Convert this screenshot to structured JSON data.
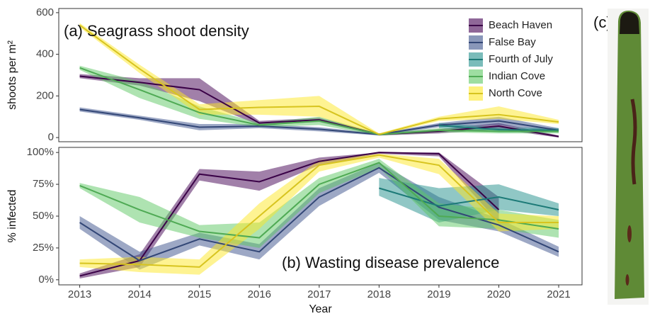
{
  "chart_data": [
    {
      "type": "line",
      "title": "(a) Seagrass shoot density",
      "ylabel": "shoots per m²",
      "x": [
        2013,
        2014,
        2015,
        2016,
        2017,
        2018,
        2019,
        2020,
        2021
      ],
      "xlim": [
        2012.65,
        2021.39
      ],
      "ylim": [
        -20,
        620
      ],
      "yticks": [
        0,
        200,
        400,
        600
      ],
      "legend": "top-right",
      "series": [
        {
          "name": "Beach Haven",
          "color": "#440154",
          "values": [
            295,
            265,
            230,
            70,
            85,
            15,
            30,
            55,
            5
          ],
          "lower": [
            285,
            250,
            175,
            60,
            75,
            10,
            20,
            40,
            0
          ],
          "upper": [
            305,
            285,
            285,
            80,
            95,
            20,
            40,
            70,
            10
          ]
        },
        {
          "name": "False Bay",
          "color": "#3b528b",
          "values": [
            135,
            95,
            50,
            55,
            40,
            15,
            60,
            80,
            35
          ],
          "lower": [
            125,
            85,
            35,
            45,
            30,
            10,
            50,
            60,
            25
          ],
          "upper": [
            145,
            105,
            65,
            65,
            50,
            20,
            70,
            100,
            45
          ]
        },
        {
          "name": "Fourth of July",
          "color": "#21908c",
          "values": [
            null,
            null,
            null,
            null,
            null,
            null,
            58,
            38,
            35
          ],
          "lower": [
            null,
            null,
            null,
            null,
            null,
            null,
            45,
            25,
            25
          ],
          "upper": [
            null,
            null,
            null,
            null,
            null,
            null,
            70,
            50,
            45
          ]
        },
        {
          "name": "Indian Cove",
          "color": "#5dc863",
          "values": [
            335,
            230,
            120,
            60,
            80,
            15,
            35,
            30,
            30
          ],
          "lower": [
            325,
            190,
            90,
            50,
            60,
            10,
            25,
            20,
            20
          ],
          "upper": [
            345,
            270,
            150,
            70,
            100,
            20,
            45,
            40,
            40
          ]
        },
        {
          "name": "North Cove",
          "color": "#fde725",
          "values": [
            540,
            330,
            135,
            145,
            150,
            15,
            90,
            110,
            75
          ],
          "lower": [
            530,
            310,
            110,
            110,
            100,
            10,
            80,
            90,
            65
          ],
          "upper": [
            550,
            350,
            160,
            180,
            200,
            20,
            100,
            150,
            85
          ]
        }
      ]
    },
    {
      "type": "line",
      "title": "(b) Wasting disease prevalence",
      "ylabel": "% infected",
      "xlabel": "Year",
      "x": [
        2013,
        2014,
        2015,
        2016,
        2017,
        2018,
        2019,
        2020,
        2021
      ],
      "xlim": [
        2012.65,
        2021.39
      ],
      "xticks": [
        2013,
        2014,
        2015,
        2016,
        2017,
        2018,
        2019,
        2020,
        2021
      ],
      "ylim": [
        -4,
        104
      ],
      "yticks": [
        {
          "value": 0,
          "label": "0%"
        },
        {
          "value": 25,
          "label": "25%"
        },
        {
          "value": 50,
          "label": "50%"
        },
        {
          "value": 75,
          "label": "75%"
        },
        {
          "value": 100,
          "label": "100%"
        }
      ],
      "series": [
        {
          "color": "#440154",
          "values": [
            3,
            15,
            83,
            77,
            93,
            100,
            99,
            55,
            null
          ],
          "lower": [
            1,
            10,
            78,
            70,
            90,
            99,
            97,
            45,
            null
          ],
          "upper": [
            5,
            20,
            87,
            85,
            96,
            100,
            100,
            65,
            null
          ]
        },
        {
          "color": "#3b528b",
          "values": [
            45,
            15,
            32,
            22,
            65,
            88,
            57,
            43,
            22
          ],
          "lower": [
            40,
            8,
            27,
            16,
            58,
            84,
            47,
            38,
            18
          ],
          "upper": [
            50,
            22,
            37,
            28,
            72,
            92,
            65,
            48,
            26
          ]
        },
        {
          "color": "#21908c",
          "values": [
            null,
            null,
            null,
            null,
            null,
            72,
            58,
            65,
            55
          ],
          "lower": [
            null,
            null,
            null,
            null,
            null,
            66,
            45,
            55,
            50
          ],
          "upper": [
            null,
            null,
            null,
            null,
            null,
            80,
            72,
            75,
            60
          ]
        },
        {
          "color": "#5dc863",
          "values": [
            74,
            55,
            38,
            33,
            75,
            92,
            50,
            47,
            40
          ],
          "lower": [
            72,
            45,
            33,
            25,
            68,
            88,
            42,
            40,
            33
          ],
          "upper": [
            76,
            65,
            43,
            45,
            80,
            95,
            60,
            55,
            47
          ]
        },
        {
          "color": "#fde725",
          "values": [
            13,
            12,
            10,
            50,
            90,
            98,
            90,
            45,
            45
          ],
          "lower": [
            10,
            6,
            4,
            40,
            85,
            96,
            83,
            38,
            40
          ],
          "upper": [
            16,
            18,
            16,
            60,
            94,
            99,
            95,
            52,
            50
          ]
        }
      ]
    }
  ],
  "photo": {
    "label": "(c)"
  }
}
